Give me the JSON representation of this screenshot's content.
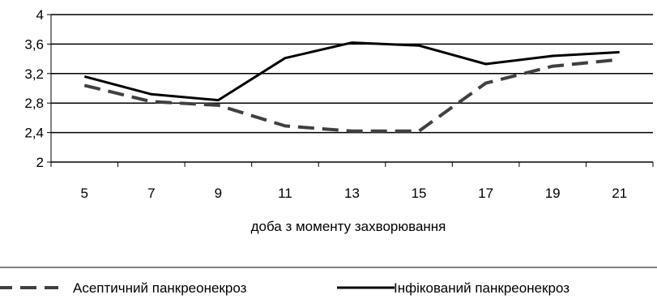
{
  "chart_data": {
    "type": "line",
    "title": "",
    "xlabel": "доба з моменту захворювання",
    "ylabel": "",
    "x": [
      "5",
      "7",
      "9",
      "11",
      "13",
      "15",
      "17",
      "19",
      "21"
    ],
    "ylim": [
      2,
      4
    ],
    "yticks": [
      "2",
      "2,4",
      "2,8",
      "3,2",
      "3,6",
      "4"
    ],
    "grid": "horizontal",
    "legend_position": "bottom",
    "series": [
      {
        "name": "Асептичний панкреонекроз",
        "style": "dashed",
        "color": "#404040",
        "values": [
          3.04,
          2.82,
          2.77,
          2.49,
          2.42,
          2.42,
          3.07,
          3.3,
          3.39
        ]
      },
      {
        "name": "Інфікований панкреонекроз",
        "style": "solid",
        "color": "#000000",
        "values": [
          3.16,
          2.92,
          2.84,
          3.41,
          3.62,
          3.58,
          3.33,
          3.44,
          3.49
        ]
      }
    ]
  }
}
